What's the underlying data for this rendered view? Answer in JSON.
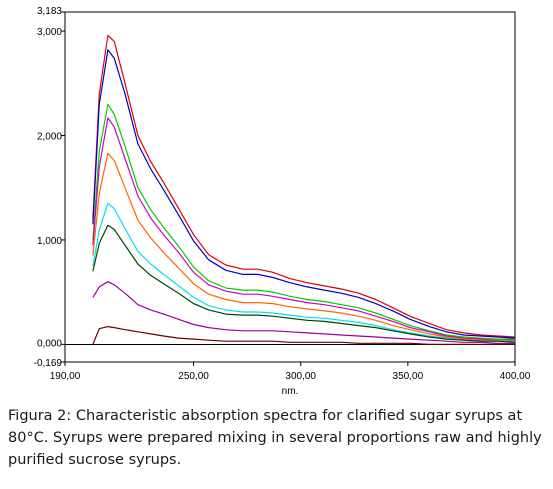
{
  "chart_data": {
    "type": "line",
    "title": "",
    "xlabel": "nm.",
    "ylabel": "",
    "xlim": [
      190,
      400
    ],
    "ylim": [
      -0.169,
      3.183
    ],
    "x_tick_labels": [
      "190,00",
      "250,00",
      "300,00",
      "350,00",
      "400,00"
    ],
    "x_tick_values": [
      190,
      250,
      300,
      350,
      400
    ],
    "y_tick_labels": [
      "3,183",
      "3,000",
      "2,000",
      "1,000",
      "0,000",
      "-0,169"
    ],
    "y_tick_values": [
      3.183,
      3.0,
      2.0,
      1.0,
      0.0,
      -0.169
    ],
    "grid": false,
    "legend": "none",
    "x": [
      203,
      206,
      210,
      213,
      218,
      224,
      230,
      236,
      243,
      250,
      257,
      265,
      273,
      280,
      287,
      295,
      303,
      311,
      319,
      327,
      335,
      343,
      351,
      360,
      368,
      376,
      384,
      392,
      400
    ],
    "series": [
      {
        "color": "#e00000",
        "values": [
          1.2,
          2.4,
          2.96,
          2.9,
          2.5,
          2.0,
          1.75,
          1.55,
          1.3,
          1.05,
          0.86,
          0.76,
          0.72,
          0.72,
          0.69,
          0.63,
          0.59,
          0.56,
          0.53,
          0.49,
          0.43,
          0.35,
          0.27,
          0.2,
          0.14,
          0.11,
          0.09,
          0.08,
          0.07
        ]
      },
      {
        "color": "#0000c0",
        "values": [
          1.15,
          2.3,
          2.82,
          2.74,
          2.4,
          1.92,
          1.68,
          1.48,
          1.24,
          0.99,
          0.81,
          0.71,
          0.67,
          0.67,
          0.64,
          0.59,
          0.55,
          0.52,
          0.49,
          0.45,
          0.39,
          0.32,
          0.24,
          0.17,
          0.12,
          0.09,
          0.08,
          0.07,
          0.06
        ]
      },
      {
        "color": "#00cc00",
        "values": [
          1.0,
          1.85,
          2.3,
          2.2,
          1.9,
          1.5,
          1.29,
          1.12,
          0.94,
          0.74,
          0.61,
          0.54,
          0.52,
          0.52,
          0.5,
          0.46,
          0.43,
          0.41,
          0.38,
          0.35,
          0.3,
          0.24,
          0.18,
          0.13,
          0.09,
          0.07,
          0.06,
          0.05,
          0.05
        ]
      },
      {
        "color": "#cc00cc",
        "values": [
          0.95,
          1.7,
          2.17,
          2.08,
          1.78,
          1.42,
          1.21,
          1.05,
          0.88,
          0.69,
          0.57,
          0.51,
          0.48,
          0.48,
          0.46,
          0.43,
          0.4,
          0.38,
          0.35,
          0.32,
          0.27,
          0.22,
          0.16,
          0.12,
          0.08,
          0.06,
          0.05,
          0.04,
          0.04
        ]
      },
      {
        "color": "#ff6600",
        "values": [
          0.85,
          1.45,
          1.83,
          1.76,
          1.5,
          1.19,
          1.02,
          0.88,
          0.73,
          0.58,
          0.48,
          0.43,
          0.4,
          0.4,
          0.39,
          0.36,
          0.34,
          0.32,
          0.3,
          0.27,
          0.23,
          0.18,
          0.14,
          0.1,
          0.07,
          0.05,
          0.04,
          0.04,
          0.03
        ]
      },
      {
        "color": "#00e0f0",
        "values": [
          0.75,
          1.1,
          1.35,
          1.3,
          1.11,
          0.89,
          0.77,
          0.67,
          0.56,
          0.45,
          0.37,
          0.33,
          0.31,
          0.31,
          0.3,
          0.28,
          0.26,
          0.25,
          0.23,
          0.21,
          0.18,
          0.14,
          0.11,
          0.08,
          0.06,
          0.04,
          0.03,
          0.03,
          0.03
        ]
      },
      {
        "color": "#004400",
        "values": [
          0.7,
          0.97,
          1.14,
          1.1,
          0.95,
          0.77,
          0.66,
          0.58,
          0.49,
          0.39,
          0.33,
          0.29,
          0.28,
          0.28,
          0.27,
          0.25,
          0.23,
          0.22,
          0.2,
          0.18,
          0.16,
          0.13,
          0.1,
          0.07,
          0.05,
          0.04,
          0.03,
          0.03,
          0.02
        ]
      },
      {
        "color": "#990099",
        "values": [
          0.45,
          0.55,
          0.6,
          0.57,
          0.49,
          0.38,
          0.33,
          0.29,
          0.24,
          0.19,
          0.16,
          0.14,
          0.13,
          0.13,
          0.13,
          0.12,
          0.11,
          0.1,
          0.09,
          0.08,
          0.07,
          0.06,
          0.05,
          0.04,
          0.03,
          0.02,
          0.02,
          0.01,
          0.01
        ]
      },
      {
        "color": "#660000",
        "values": [
          0.0,
          0.15,
          0.17,
          0.16,
          0.14,
          0.12,
          0.1,
          0.08,
          0.06,
          0.05,
          0.04,
          0.03,
          0.03,
          0.03,
          0.03,
          0.02,
          0.02,
          0.02,
          0.02,
          0.01,
          0.01,
          0.01,
          0.01,
          0.0,
          0.0,
          0.0,
          0.0,
          0.0,
          0.0
        ]
      }
    ]
  },
  "caption": {
    "line1": "Figura 2: Characteristic absorption spectra for clarified sugar syrups at",
    "line2": "80°C. Syrups were prepared mixing in several proportions raw and highly",
    "line3": "purified sucrose syrups."
  }
}
